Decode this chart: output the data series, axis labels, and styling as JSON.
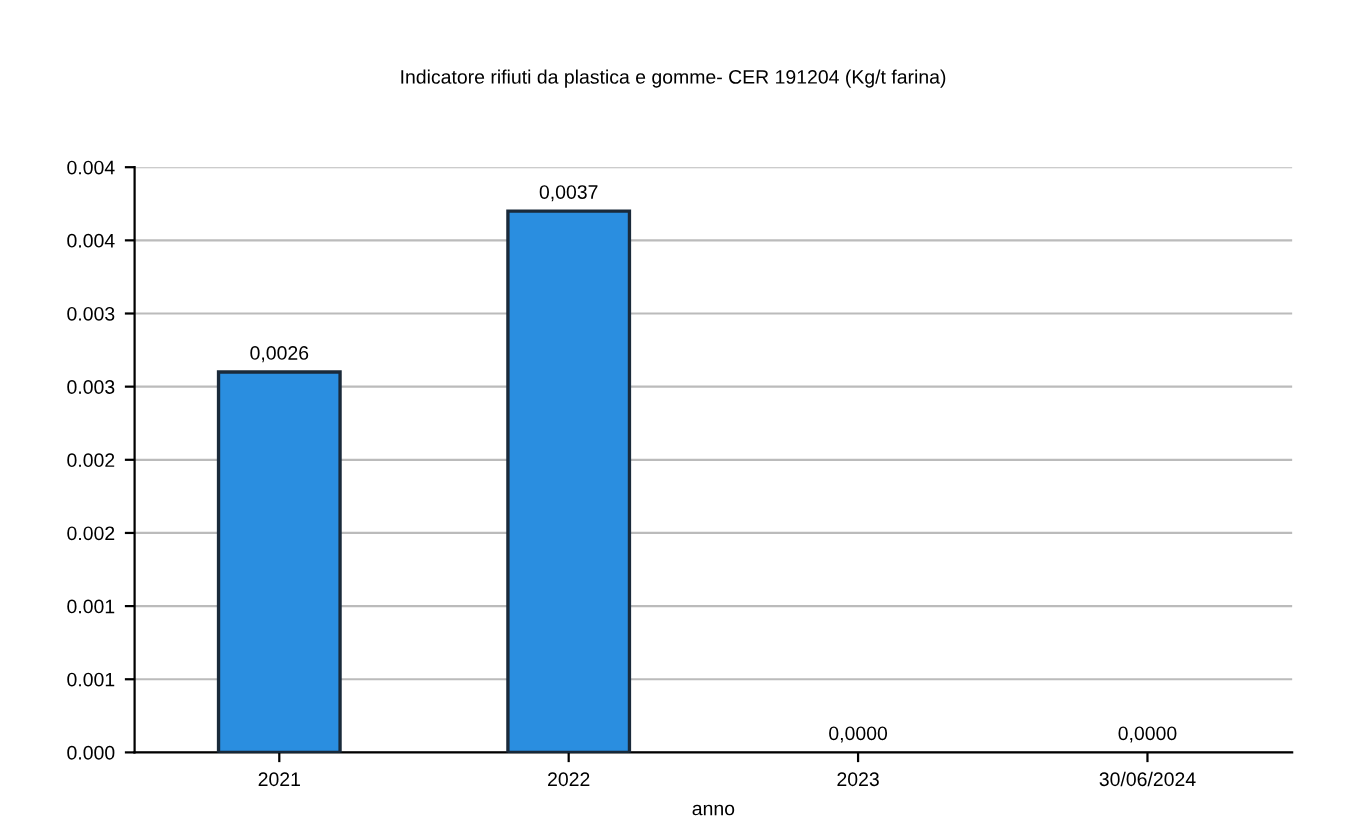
{
  "chart_data": {
    "type": "bar",
    "title": "Indicatore rifiuti da plastica e gomme- CER 191204 (Kg/t farina)",
    "xlabel": "anno",
    "categories": [
      "2021",
      "2022",
      "2023",
      "30/06/2024"
    ],
    "values": [
      0.0026,
      0.0037,
      0,
      0
    ],
    "value_labels": [
      "0,0026",
      "0,0037",
      "0,0000",
      "0,0000"
    ],
    "color": "#2a8ee0",
    "ylim": [
      0,
      0.004
    ],
    "yticks": [
      {
        "value": 0,
        "label": "0.000"
      },
      {
        "value": 0.0005,
        "label": "0.001"
      },
      {
        "value": 0.001,
        "label": "0.001"
      },
      {
        "value": 0.0015,
        "label": "0.002"
      },
      {
        "value": 0.002,
        "label": "0.002"
      },
      {
        "value": 0.0025,
        "label": "0.003"
      },
      {
        "value": 0.003,
        "label": "0.003"
      },
      {
        "value": 0.0035,
        "label": "0.004"
      },
      {
        "value": 0.004,
        "label": "0.004"
      }
    ],
    "grid": "y",
    "legend": false
  }
}
